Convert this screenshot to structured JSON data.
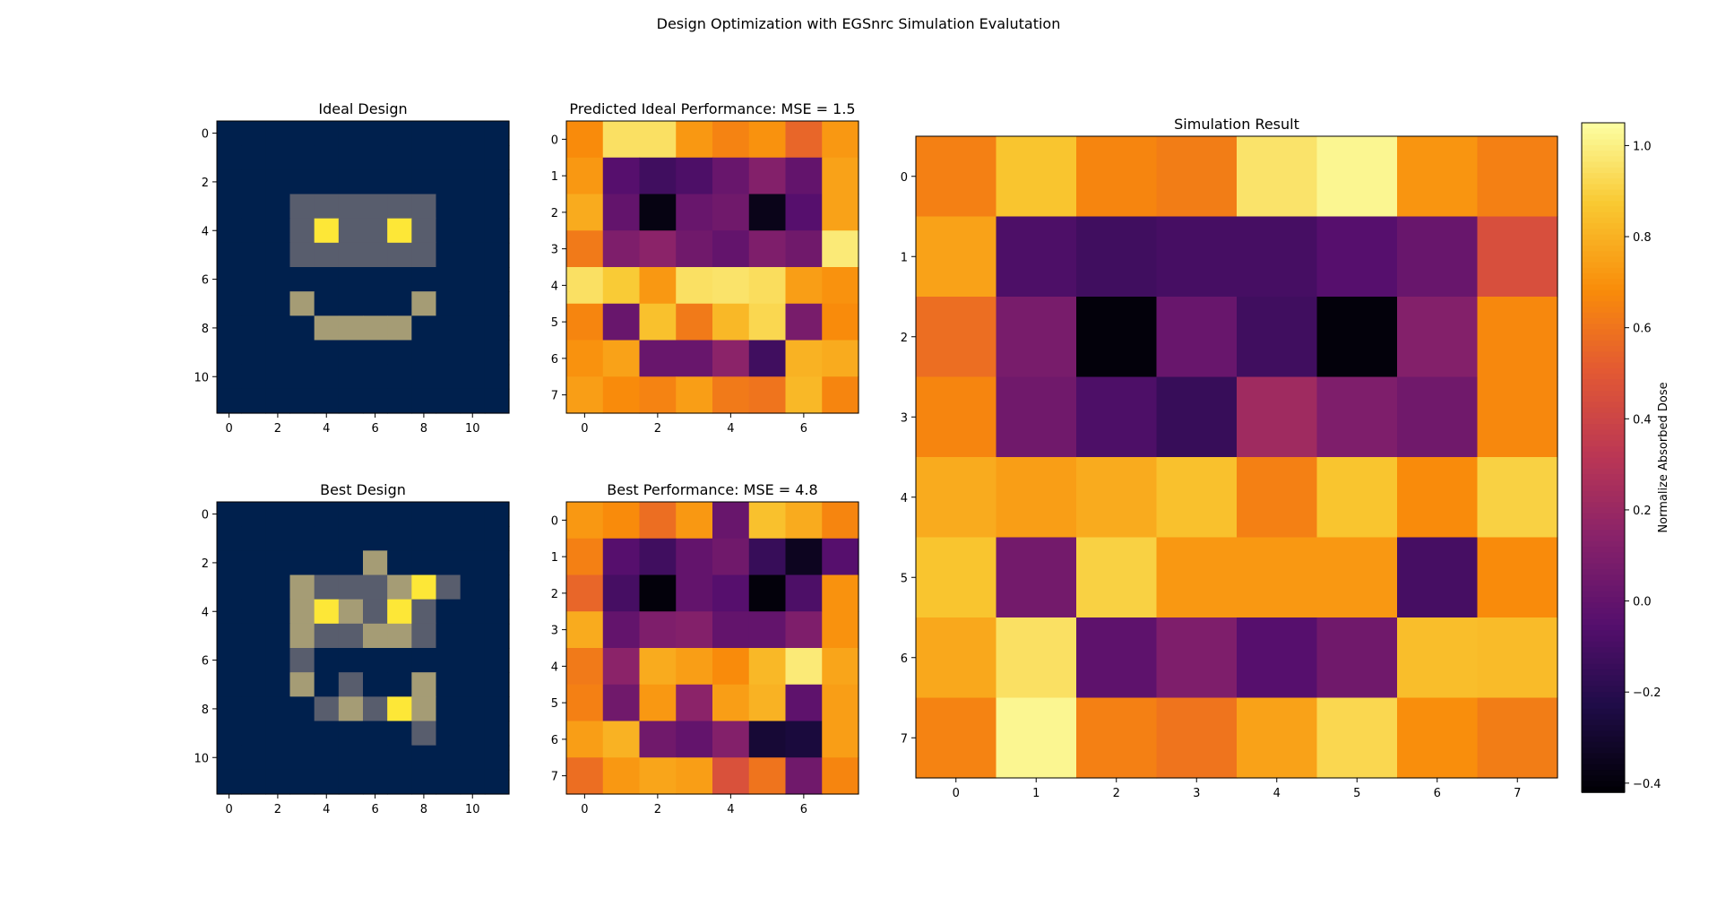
{
  "figure": {
    "title": "Design Optimization with EGSnrc Simulation Evalutation"
  },
  "chart_data": [
    {
      "type": "heatmap",
      "id": "ideal_design",
      "title": "Ideal Design",
      "colormap": "cividis",
      "vmin": 0,
      "vmax": 3,
      "xticks": [
        0,
        2,
        4,
        6,
        8,
        10
      ],
      "yticks": [
        0,
        2,
        4,
        6,
        8,
        10
      ],
      "values": [
        [
          0,
          0,
          0,
          0,
          0,
          0,
          0,
          0,
          0,
          0,
          0,
          0
        ],
        [
          0,
          0,
          0,
          0,
          0,
          0,
          0,
          0,
          0,
          0,
          0,
          0
        ],
        [
          0,
          0,
          0,
          0,
          0,
          0,
          0,
          0,
          0,
          0,
          0,
          0
        ],
        [
          0,
          0,
          0,
          1,
          1,
          1,
          1,
          1,
          1,
          0,
          0,
          0
        ],
        [
          0,
          0,
          0,
          1,
          3,
          1,
          1,
          3,
          1,
          0,
          0,
          0
        ],
        [
          0,
          0,
          0,
          1,
          1,
          1,
          1,
          1,
          1,
          0,
          0,
          0
        ],
        [
          0,
          0,
          0,
          0,
          0,
          0,
          0,
          0,
          0,
          0,
          0,
          0
        ],
        [
          0,
          0,
          0,
          2,
          0,
          0,
          0,
          0,
          2,
          0,
          0,
          0
        ],
        [
          0,
          0,
          0,
          0,
          2,
          2,
          2,
          2,
          0,
          0,
          0,
          0
        ],
        [
          0,
          0,
          0,
          0,
          0,
          0,
          0,
          0,
          0,
          0,
          0,
          0
        ],
        [
          0,
          0,
          0,
          0,
          0,
          0,
          0,
          0,
          0,
          0,
          0,
          0
        ],
        [
          0,
          0,
          0,
          0,
          0,
          0,
          0,
          0,
          0,
          0,
          0,
          0
        ]
      ]
    },
    {
      "type": "heatmap",
      "id": "predicted_ideal",
      "title": "Predicted Ideal Performance: MSE = 1.5",
      "colormap": "inferno",
      "vmin": -0.42,
      "vmax": 1.05,
      "xticks": [
        0,
        2,
        4,
        6
      ],
      "yticks": [
        0,
        1,
        2,
        3,
        4,
        5,
        6,
        7
      ],
      "values": [
        [
          0.68,
          0.95,
          0.95,
          0.72,
          0.65,
          0.7,
          0.55,
          0.72
        ],
        [
          0.72,
          -0.05,
          -0.12,
          -0.08,
          0.02,
          0.12,
          0.0,
          0.75
        ],
        [
          0.78,
          0.0,
          -0.38,
          0.02,
          0.05,
          -0.36,
          -0.05,
          0.75
        ],
        [
          0.62,
          0.1,
          0.15,
          0.05,
          0.0,
          0.1,
          0.05,
          0.98
        ],
        [
          0.95,
          0.88,
          0.72,
          0.95,
          0.96,
          0.94,
          0.74,
          0.7
        ],
        [
          0.66,
          0.02,
          0.85,
          0.62,
          0.82,
          0.92,
          0.08,
          0.68
        ],
        [
          0.7,
          0.75,
          0.02,
          0.02,
          0.15,
          -0.12,
          0.8,
          0.78
        ],
        [
          0.74,
          0.68,
          0.65,
          0.74,
          0.62,
          0.6,
          0.82,
          0.66
        ]
      ]
    },
    {
      "type": "heatmap",
      "id": "best_design",
      "title": "Best Design",
      "colormap": "cividis",
      "vmin": 0,
      "vmax": 3,
      "xticks": [
        0,
        2,
        4,
        6,
        8,
        10
      ],
      "yticks": [
        0,
        2,
        4,
        6,
        8,
        10
      ],
      "values": [
        [
          0,
          0,
          0,
          0,
          0,
          0,
          0,
          0,
          0,
          0,
          0,
          0
        ],
        [
          0,
          0,
          0,
          0,
          0,
          0,
          0,
          0,
          0,
          0,
          0,
          0
        ],
        [
          0,
          0,
          0,
          0,
          0,
          0,
          2,
          0,
          0,
          0,
          0,
          0
        ],
        [
          0,
          0,
          0,
          2,
          1,
          1,
          1,
          2,
          3,
          1,
          0,
          0
        ],
        [
          0,
          0,
          0,
          2,
          3,
          2,
          1,
          3,
          1,
          0,
          0,
          0
        ],
        [
          0,
          0,
          0,
          2,
          1,
          1,
          2,
          2,
          1,
          0,
          0,
          0
        ],
        [
          0,
          0,
          0,
          1,
          0,
          0,
          0,
          0,
          0,
          0,
          0,
          0
        ],
        [
          0,
          0,
          0,
          2,
          0,
          1,
          0,
          0,
          2,
          0,
          0,
          0
        ],
        [
          0,
          0,
          0,
          0,
          1,
          2,
          1,
          3,
          2,
          0,
          0,
          0
        ],
        [
          0,
          0,
          0,
          0,
          0,
          0,
          0,
          0,
          1,
          0,
          0,
          0
        ],
        [
          0,
          0,
          0,
          0,
          0,
          0,
          0,
          0,
          0,
          0,
          0,
          0
        ],
        [
          0,
          0,
          0,
          0,
          0,
          0,
          0,
          0,
          0,
          0,
          0,
          0
        ]
      ]
    },
    {
      "type": "heatmap",
      "id": "best_performance",
      "title": "Best Performance: MSE = 4.8",
      "colormap": "inferno",
      "vmin": -0.42,
      "vmax": 1.05,
      "xticks": [
        0,
        2,
        4,
        6
      ],
      "yticks": [
        0,
        1,
        2,
        3,
        4,
        5,
        6,
        7
      ],
      "values": [
        [
          0.72,
          0.68,
          0.58,
          0.72,
          0.02,
          0.85,
          0.78,
          0.66
        ],
        [
          0.64,
          -0.05,
          -0.12,
          0.0,
          0.05,
          -0.15,
          -0.34,
          -0.05
        ],
        [
          0.55,
          -0.1,
          -0.4,
          0.0,
          -0.05,
          -0.4,
          -0.08,
          0.7
        ],
        [
          0.78,
          0.0,
          0.1,
          0.12,
          0.0,
          0.0,
          0.1,
          0.7
        ],
        [
          0.62,
          0.15,
          0.78,
          0.74,
          0.68,
          0.82,
          0.98,
          0.76
        ],
        [
          0.64,
          0.05,
          0.72,
          0.15,
          0.74,
          0.8,
          -0.02,
          0.74
        ],
        [
          0.74,
          0.8,
          0.05,
          0.0,
          0.12,
          -0.28,
          -0.26,
          0.74
        ],
        [
          0.58,
          0.72,
          0.76,
          0.74,
          0.46,
          0.6,
          0.05,
          0.66
        ]
      ]
    },
    {
      "type": "heatmap",
      "id": "simulation_result",
      "title": "Simulation Result",
      "colormap": "inferno",
      "vmin": -0.42,
      "vmax": 1.05,
      "xticks": [
        0,
        1,
        2,
        3,
        4,
        5,
        6,
        7
      ],
      "yticks": [
        0,
        1,
        2,
        3,
        4,
        5,
        6,
        7
      ],
      "colorbar": {
        "label": "Normalize Absorbed Dose",
        "ticks": [
          -0.4,
          -0.2,
          0.0,
          0.2,
          0.4,
          0.6,
          0.8,
          1.0
        ]
      },
      "values": [
        [
          0.64,
          0.86,
          0.66,
          0.63,
          0.96,
          1.02,
          0.71,
          0.64
        ],
        [
          0.75,
          -0.08,
          -0.12,
          -0.1,
          -0.1,
          -0.05,
          0.02,
          0.45
        ],
        [
          0.58,
          0.08,
          -0.4,
          0.02,
          -0.12,
          -0.4,
          0.12,
          0.67
        ],
        [
          0.66,
          0.05,
          -0.08,
          -0.15,
          0.22,
          0.1,
          0.05,
          0.67
        ],
        [
          0.78,
          0.74,
          0.78,
          0.85,
          0.64,
          0.86,
          0.68,
          0.9
        ],
        [
          0.86,
          0.06,
          0.9,
          0.72,
          0.72,
          0.72,
          -0.1,
          0.68
        ],
        [
          0.77,
          0.95,
          -0.02,
          0.1,
          -0.05,
          0.05,
          0.84,
          0.83
        ],
        [
          0.65,
          1.02,
          0.64,
          0.6,
          0.75,
          0.92,
          0.69,
          0.63
        ]
      ]
    }
  ]
}
